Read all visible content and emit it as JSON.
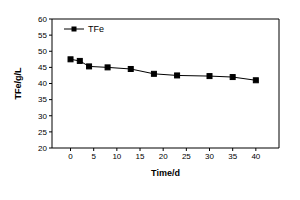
{
  "chart_data": {
    "type": "line",
    "x_label": "Time/d",
    "y_label": "TFe/g/L",
    "xlim": [
      -4,
      45
    ],
    "xticks": [
      0,
      5,
      10,
      15,
      20,
      25,
      30,
      35,
      40
    ],
    "ylim": [
      20,
      60
    ],
    "yticks": [
      20,
      25,
      30,
      35,
      40,
      45,
      50,
      55,
      60
    ],
    "legend": "top left",
    "series": [
      {
        "name": "TFe",
        "color": "#000000",
        "marker": "square",
        "line_style": "solid",
        "x": [
          0,
          2,
          4,
          8,
          13,
          18,
          23,
          30,
          35,
          40
        ],
        "values": [
          47.5,
          47,
          45.3,
          45,
          44.5,
          43,
          42.5,
          42.3,
          42,
          41
        ]
      }
    ]
  }
}
